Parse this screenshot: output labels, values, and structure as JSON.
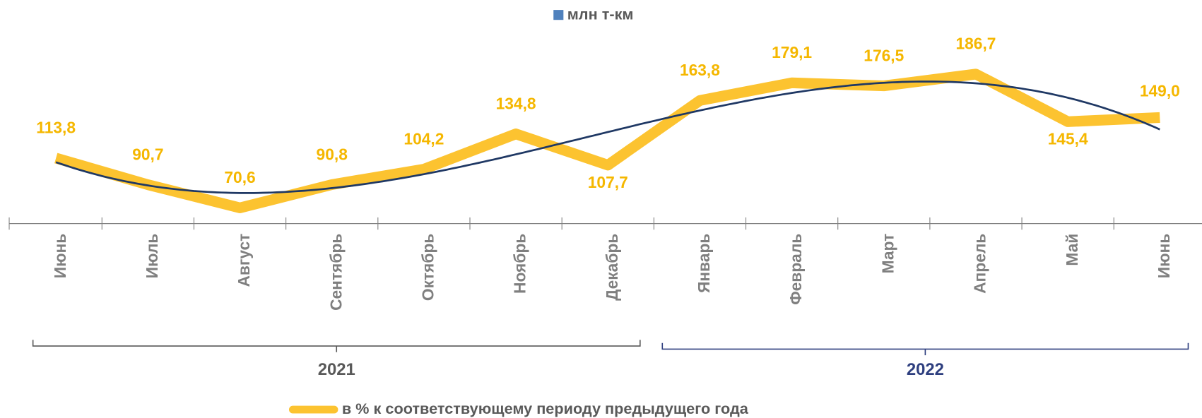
{
  "chart_data": {
    "type": "line",
    "categories": [
      "Июнь",
      "Июль",
      "Август",
      "Сентябрь",
      "Октябрь",
      "Ноябрь",
      "Декабрь",
      "Январь",
      "Февраль",
      "Март",
      "Апрель",
      "Май",
      "Июнь"
    ],
    "series": [
      {
        "name": "в % к соответствующему периоду предыдущего года",
        "color": "#fcc330",
        "values": [
          113.8,
          90.7,
          70.6,
          90.8,
          104.2,
          134.8,
          107.7,
          163.8,
          179.1,
          176.5,
          186.7,
          145.4,
          149.0
        ],
        "value_labels": [
          "113,8",
          "90,7",
          "70,6",
          "90,8",
          "104,2",
          "134,8",
          "107,7",
          "163,8",
          "179,1",
          "176,5",
          "186,7",
          "145,4",
          "149,0"
        ]
      }
    ],
    "legend_extra": {
      "name": "млн т-км",
      "color": "#4f81bd"
    },
    "trendline": {
      "color": "#1f3864"
    },
    "groups": [
      {
        "name": "2021",
        "count": 7,
        "color": "#595959"
      },
      {
        "name": "2022",
        "count": 6,
        "color": "#2e3f7f"
      }
    ],
    "ylim": [
      57,
      251
    ]
  }
}
